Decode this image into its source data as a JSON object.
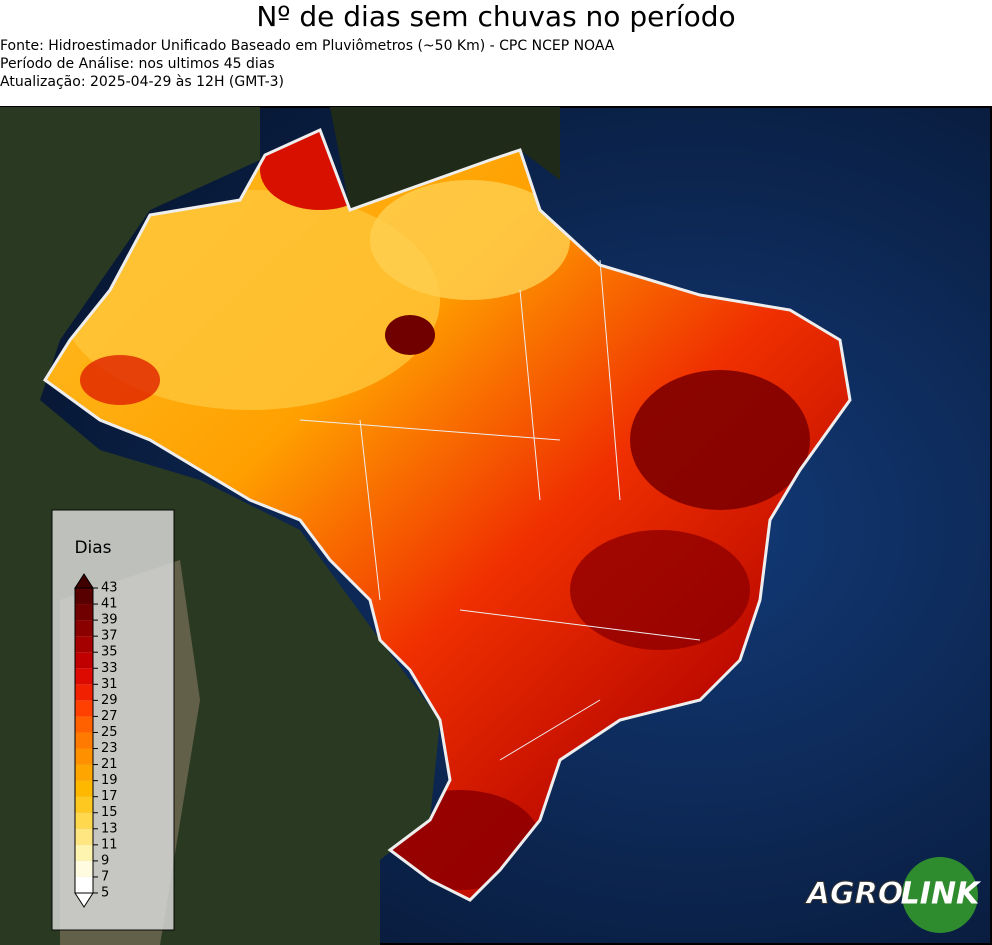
{
  "header": {
    "title": "Nº de dias sem chuvas no período",
    "lines": [
      "Fonte: Hidroestimador Unificado Baseado em Pluviômetros (~50 Km) - CPC NCEP NOAA",
      "Período de Análise: nos ultimos 45 dias",
      "Atualização: 2025-04-29 às 12H (GMT-3)"
    ]
  },
  "legend": {
    "title": "Dias",
    "ticks": [
      5,
      7,
      9,
      11,
      13,
      15,
      17,
      19,
      21,
      23,
      25,
      27,
      29,
      31,
      33,
      35,
      37,
      39,
      41,
      43
    ],
    "colors": [
      "#ffffff",
      "#fffbe0",
      "#fff3b0",
      "#ffe680",
      "#ffd84d",
      "#ffc820",
      "#ffb800",
      "#ffa500",
      "#ff9000",
      "#ff7a00",
      "#ff6000",
      "#ff4000",
      "#f02000",
      "#dc0a00",
      "#c00000",
      "#a50000",
      "#8a0000",
      "#700000",
      "#580000"
    ],
    "over_color": "#400000"
  },
  "logo": {
    "left": "AGRO",
    "right": "LINK"
  }
}
